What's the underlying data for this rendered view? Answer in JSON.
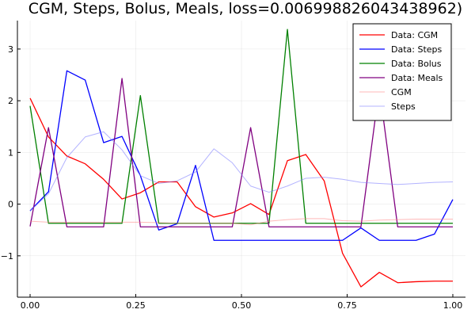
{
  "chart_data": {
    "type": "line",
    "title": "CGM, Steps, Bolus, Meals, loss=0.006998826043438962)",
    "xlabel": "",
    "ylabel": "",
    "xlim": [
      -0.03,
      1.03
    ],
    "ylim": [
      -1.8,
      3.55
    ],
    "grid": true,
    "legend_position": "top-right",
    "xticks": [
      {
        "value": 0.0,
        "label": "0.00"
      },
      {
        "value": 0.25,
        "label": "0.25"
      },
      {
        "value": 0.5,
        "label": "0.50"
      },
      {
        "value": 0.75,
        "label": "0.75"
      },
      {
        "value": 1.0,
        "label": "1.00"
      }
    ],
    "yticks": [
      {
        "value": -1,
        "label": "−1"
      },
      {
        "value": 0,
        "label": "0"
      },
      {
        "value": 1,
        "label": "1"
      },
      {
        "value": 2,
        "label": "2"
      },
      {
        "value": 3,
        "label": "3"
      }
    ],
    "x": [
      0.0,
      0.0435,
      0.087,
      0.1304,
      0.1739,
      0.2174,
      0.2609,
      0.3043,
      0.3478,
      0.3913,
      0.4348,
      0.4783,
      0.5217,
      0.5652,
      0.6087,
      0.6522,
      0.6957,
      0.7391,
      0.7826,
      0.8261,
      0.8696,
      0.913,
      0.9565,
      1.0
    ],
    "series": [
      {
        "name": "Data: CGM",
        "color": "#ff0000",
        "opacity": 1,
        "width": 1.3,
        "values": [
          2.05,
          1.3,
          0.93,
          0.78,
          0.48,
          0.1,
          0.22,
          0.43,
          0.43,
          -0.05,
          -0.25,
          -0.17,
          0.01,
          -0.2,
          0.84,
          0.96,
          0.45,
          -0.95,
          -1.6,
          -1.32,
          -1.52,
          -1.5,
          -1.49,
          -1.49
        ]
      },
      {
        "name": "Data: Steps",
        "color": "#0000ff",
        "opacity": 1,
        "width": 1.3,
        "values": [
          -0.13,
          0.24,
          2.58,
          2.4,
          1.19,
          1.31,
          0.55,
          -0.5,
          -0.38,
          0.75,
          -0.7,
          -0.7,
          -0.7,
          -0.7,
          -0.7,
          -0.7,
          -0.7,
          -0.7,
          -0.46,
          -0.7,
          -0.7,
          -0.7,
          -0.58,
          0.09
        ]
      },
      {
        "name": "Data: Bolus",
        "color": "#008000",
        "opacity": 1,
        "width": 1.3,
        "values": [
          1.9,
          -0.37,
          -0.37,
          -0.37,
          -0.37,
          -0.37,
          2.1,
          -0.37,
          -0.37,
          -0.37,
          -0.37,
          -0.37,
          -0.37,
          -0.37,
          3.38,
          -0.37,
          -0.37,
          -0.37,
          -0.37,
          -0.37,
          -0.37,
          -0.37,
          -0.37,
          -0.37
        ]
      },
      {
        "name": "Data: Meals",
        "color": "#800080",
        "opacity": 1,
        "width": 1.3,
        "values": [
          -0.43,
          1.48,
          -0.44,
          -0.44,
          -0.44,
          2.43,
          -0.44,
          -0.44,
          -0.44,
          -0.44,
          -0.44,
          -0.44,
          1.48,
          -0.44,
          -0.44,
          -0.44,
          -0.44,
          -0.44,
          -0.44,
          2.25,
          -0.44,
          -0.44,
          -0.44,
          -0.44
        ]
      },
      {
        "name": "CGM",
        "color": "#ff8080",
        "opacity": 0.55,
        "width": 1.0,
        "values": [
          -0.33,
          -0.35,
          -0.35,
          -0.35,
          -0.35,
          -0.35,
          -0.35,
          -0.36,
          -0.37,
          -0.37,
          -0.37,
          -0.37,
          -0.4,
          -0.33,
          -0.3,
          -0.28,
          -0.28,
          -0.32,
          -0.33,
          -0.31,
          -0.3,
          -0.29,
          -0.29,
          -0.29
        ]
      },
      {
        "name": "Steps",
        "color": "#8080ff",
        "opacity": 0.6,
        "width": 1.0,
        "values": [
          -0.13,
          0.2,
          0.9,
          1.3,
          1.4,
          1.05,
          0.55,
          0.4,
          0.45,
          0.62,
          1.07,
          0.8,
          0.35,
          0.23,
          0.35,
          0.5,
          0.52,
          0.48,
          0.42,
          0.4,
          0.38,
          0.4,
          0.42,
          0.43
        ]
      }
    ]
  }
}
